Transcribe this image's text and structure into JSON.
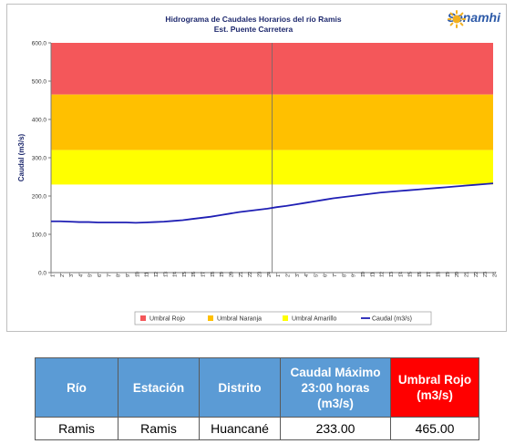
{
  "chart_data": {
    "type": "line",
    "title": "Hidrograma de Caudales Horarios del río Ramis",
    "subtitle": "Est. Puente Carretera",
    "ylabel": "Caudal (m3/s)",
    "xlabel": "",
    "ylim": [
      0,
      600
    ],
    "yticks": [
      "0.0",
      "100.0",
      "200.0",
      "300.0",
      "400.0",
      "500.0",
      "600.0"
    ],
    "categories": [
      "1",
      "2",
      "3",
      "4",
      "5",
      "6",
      "7",
      "8",
      "9",
      "10",
      "11",
      "12",
      "13",
      "14",
      "15",
      "16",
      "17",
      "18",
      "19",
      "20",
      "21",
      "22",
      "23",
      "24",
      "1",
      "2",
      "3",
      "4",
      "5",
      "6",
      "7",
      "8",
      "9",
      "10",
      "11",
      "12",
      "13",
      "14",
      "15",
      "16",
      "17",
      "18",
      "19",
      "20",
      "21",
      "22",
      "23",
      "24"
    ],
    "thresholds": [
      {
        "name": "Umbral Rojo",
        "from": 465,
        "to": 600,
        "color": "#f4575a"
      },
      {
        "name": "Umbral Naranja",
        "from": 320,
        "to": 465,
        "color": "#ffc000"
      },
      {
        "name": "Umbral Amarillo",
        "from": 230,
        "to": 320,
        "color": "#ffff00"
      }
    ],
    "series": [
      {
        "name": "Caudal (m3/s)",
        "color": "#1f1fb4",
        "values": [
          134,
          134,
          133,
          132,
          132,
          131,
          131,
          131,
          131,
          130,
          131,
          132,
          133,
          135,
          137,
          140,
          143,
          146,
          150,
          154,
          158,
          161,
          164,
          167,
          171,
          174,
          178,
          182,
          186,
          190,
          194,
          197,
          200,
          203,
          206,
          209,
          211,
          213,
          215,
          217,
          219,
          221,
          223,
          225,
          227,
          229,
          231,
          233
        ]
      }
    ],
    "legend_position": "bottom",
    "grid": false
  },
  "logo": {
    "text": "Senamhi"
  },
  "table": {
    "headers": [
      "Río",
      "Estación",
      "Distrito",
      "Caudal Máximo 23:00 horas (m3/s)",
      "Umbral Rojo (m3/s)"
    ],
    "row": [
      "Ramis",
      "Ramis",
      "Huancané",
      "233.00",
      "465.00"
    ],
    "header_color": "#5b9bd5",
    "highlight_color": "#ff0000"
  }
}
